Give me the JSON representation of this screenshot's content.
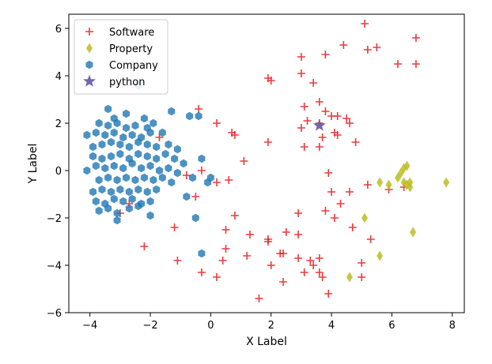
{
  "chart_data": {
    "type": "scatter",
    "xlabel": "X Label",
    "ylabel": "Y Label",
    "xlim": [
      -4.7,
      8.4
    ],
    "ylim": [
      -6.0,
      6.6
    ],
    "xticks": [
      -4,
      -2,
      0,
      2,
      4,
      6,
      8
    ],
    "yticks": [
      -6,
      -4,
      -2,
      0,
      2,
      4,
      6
    ],
    "grid": false,
    "legend_position": "top-left",
    "series": [
      {
        "name": "Software",
        "marker": "plus",
        "color": "#e41a1c",
        "points": [
          [
            5.1,
            6.2
          ],
          [
            6.8,
            5.6
          ],
          [
            5.2,
            5.1
          ],
          [
            5.5,
            5.2
          ],
          [
            4.4,
            5.3
          ],
          [
            3.0,
            4.8
          ],
          [
            3.8,
            4.9
          ],
          [
            6.2,
            4.5
          ],
          [
            6.8,
            4.5
          ],
          [
            1.9,
            3.9
          ],
          [
            2.0,
            3.8
          ],
          [
            3.0,
            4.1
          ],
          [
            3.4,
            3.7
          ],
          [
            -0.4,
            2.6
          ],
          [
            0.2,
            2.0
          ],
          [
            0.7,
            1.6
          ],
          [
            0.8,
            1.5
          ],
          [
            3.6,
            2.9
          ],
          [
            3.1,
            2.7
          ],
          [
            3.8,
            2.5
          ],
          [
            4.2,
            2.3
          ],
          [
            4.5,
            2.2
          ],
          [
            3.2,
            2.1
          ],
          [
            3.6,
            2.0
          ],
          [
            4.0,
            2.3
          ],
          [
            3.0,
            1.8
          ],
          [
            4.6,
            2.0
          ],
          [
            3.7,
            1.4
          ],
          [
            4.1,
            1.6
          ],
          [
            4.2,
            1.5
          ],
          [
            1.9,
            1.2
          ],
          [
            4.8,
            1.2
          ],
          [
            3.1,
            1.0
          ],
          [
            3.6,
            1.0
          ],
          [
            -1.7,
            1.4
          ],
          [
            1.1,
            0.4
          ],
          [
            -0.3,
            0.0
          ],
          [
            -0.8,
            -0.2
          ],
          [
            0.2,
            -0.5
          ],
          [
            0.6,
            -0.4
          ],
          [
            -0.5,
            -1.1
          ],
          [
            -2.7,
            -1.4
          ],
          [
            -3.0,
            -1.8
          ],
          [
            4.0,
            -0.9
          ],
          [
            4.3,
            -1.4
          ],
          [
            4.6,
            -0.9
          ],
          [
            5.2,
            -0.6
          ],
          [
            5.9,
            -0.8
          ],
          [
            6.4,
            -0.7
          ],
          [
            2.9,
            -1.8
          ],
          [
            3.8,
            -1.7
          ],
          [
            4.1,
            -2.0
          ],
          [
            0.8,
            -1.9
          ],
          [
            0.5,
            -2.5
          ],
          [
            -1.2,
            -2.4
          ],
          [
            4.7,
            -2.4
          ],
          [
            5.3,
            -2.9
          ],
          [
            2.5,
            -2.6
          ],
          [
            1.3,
            -2.7
          ],
          [
            1.9,
            -2.9
          ],
          [
            2.9,
            -2.7
          ],
          [
            -2.2,
            -3.2
          ],
          [
            1.9,
            -3.0
          ],
          [
            2.3,
            -3.5
          ],
          [
            2.4,
            -3.5
          ],
          [
            0.5,
            -3.3
          ],
          [
            -1.1,
            -3.8
          ],
          [
            0.4,
            -3.8
          ],
          [
            1.2,
            -3.6
          ],
          [
            2.0,
            -4.0
          ],
          [
            2.9,
            -3.7
          ],
          [
            3.3,
            -3.8
          ],
          [
            3.4,
            -4.0
          ],
          [
            3.6,
            -3.7
          ],
          [
            5.0,
            -3.9
          ],
          [
            -0.3,
            -4.3
          ],
          [
            0.2,
            -4.5
          ],
          [
            2.4,
            -4.7
          ],
          [
            3.1,
            -4.3
          ],
          [
            3.6,
            -4.3
          ],
          [
            3.7,
            -4.5
          ],
          [
            5.0,
            -4.5
          ],
          [
            3.9,
            -5.2
          ],
          [
            1.6,
            -5.4
          ],
          [
            3.9,
            -0.1
          ]
        ]
      },
      {
        "name": "Property",
        "marker": "diamond",
        "color": "#bcbd22",
        "points": [
          [
            5.6,
            -0.5
          ],
          [
            5.9,
            -0.6
          ],
          [
            6.2,
            -0.3
          ],
          [
            6.3,
            -0.1
          ],
          [
            6.4,
            0.1
          ],
          [
            6.5,
            0.2
          ],
          [
            6.5,
            -0.6
          ],
          [
            6.6,
            -0.5
          ],
          [
            6.6,
            -0.7
          ],
          [
            6.4,
            -0.5
          ],
          [
            7.8,
            -0.5
          ],
          [
            5.1,
            -2.0
          ],
          [
            6.7,
            -2.6
          ],
          [
            5.6,
            -3.6
          ],
          [
            4.6,
            -4.5
          ]
        ]
      },
      {
        "name": "Company",
        "marker": "hexagon",
        "color": "#1f77b4",
        "points": [
          [
            -2.4,
            3.6
          ],
          [
            -3.4,
            2.6
          ],
          [
            -2.8,
            2.4
          ],
          [
            -3.2,
            2.2
          ],
          [
            -2.2,
            2.2
          ],
          [
            -1.3,
            2.5
          ],
          [
            -0.7,
            2.3
          ],
          [
            -0.4,
            2.3
          ],
          [
            -3.7,
            2.0
          ],
          [
            -3.4,
            1.9
          ],
          [
            -3.1,
            2.0
          ],
          [
            -2.8,
            1.8
          ],
          [
            -2.5,
            1.9
          ],
          [
            -2.1,
            1.8
          ],
          [
            -1.9,
            2.0
          ],
          [
            -3.8,
            1.6
          ],
          [
            -3.5,
            1.5
          ],
          [
            -3.2,
            1.6
          ],
          [
            -2.9,
            1.4
          ],
          [
            -2.6,
            1.5
          ],
          [
            -2.3,
            1.4
          ],
          [
            -2.0,
            1.6
          ],
          [
            -1.6,
            1.6
          ],
          [
            -4.1,
            1.5
          ],
          [
            -3.9,
            1.0
          ],
          [
            -3.6,
            1.1
          ],
          [
            -3.3,
            1.2
          ],
          [
            -3.0,
            1.1
          ],
          [
            -2.7,
            1.0
          ],
          [
            -2.4,
            1.2
          ],
          [
            -2.1,
            1.1
          ],
          [
            -1.8,
            1.0
          ],
          [
            -1.4,
            1.1
          ],
          [
            -1.1,
            0.9
          ],
          [
            -3.9,
            0.6
          ],
          [
            -3.6,
            0.5
          ],
          [
            -3.3,
            0.6
          ],
          [
            -3.0,
            0.7
          ],
          [
            -2.7,
            0.5
          ],
          [
            -2.4,
            0.7
          ],
          [
            -2.1,
            0.6
          ],
          [
            -1.8,
            0.5
          ],
          [
            -1.5,
            0.7
          ],
          [
            -1.2,
            0.5
          ],
          [
            -0.9,
            0.3
          ],
          [
            -4.1,
            0.0
          ],
          [
            -3.8,
            0.2
          ],
          [
            -3.5,
            0.1
          ],
          [
            -3.2,
            0.2
          ],
          [
            -2.9,
            0.1
          ],
          [
            -2.6,
            0.3
          ],
          [
            -2.3,
            0.1
          ],
          [
            -2.0,
            0.2
          ],
          [
            -1.7,
            0.0
          ],
          [
            -1.4,
            0.1
          ],
          [
            -1.1,
            -0.1
          ],
          [
            -3.7,
            -0.4
          ],
          [
            -3.4,
            -0.3
          ],
          [
            -3.1,
            -0.4
          ],
          [
            -2.8,
            -0.3
          ],
          [
            -2.5,
            -0.4
          ],
          [
            -2.2,
            -0.3
          ],
          [
            -1.9,
            -0.4
          ],
          [
            -1.6,
            -0.3
          ],
          [
            -1.3,
            -0.5
          ],
          [
            -3.9,
            -0.9
          ],
          [
            -3.6,
            -0.8
          ],
          [
            -3.3,
            -0.9
          ],
          [
            -3.0,
            -0.8
          ],
          [
            -2.7,
            -0.9
          ],
          [
            -2.4,
            -0.8
          ],
          [
            -2.1,
            -0.9
          ],
          [
            -1.8,
            -0.8
          ],
          [
            -3.8,
            -1.3
          ],
          [
            -3.5,
            -1.4
          ],
          [
            -3.2,
            -1.2
          ],
          [
            -2.9,
            -1.3
          ],
          [
            -2.6,
            -1.2
          ],
          [
            -2.3,
            -1.4
          ],
          [
            -2.0,
            -1.3
          ],
          [
            -3.7,
            -1.7
          ],
          [
            -3.4,
            -1.6
          ],
          [
            -3.1,
            -1.8
          ],
          [
            -2.7,
            -1.6
          ],
          [
            -2.4,
            -1.5
          ],
          [
            -2.0,
            -1.9
          ],
          [
            -3.1,
            -2.1
          ],
          [
            -0.6,
            -0.3
          ],
          [
            0.0,
            -0.3
          ],
          [
            -0.3,
            0.5
          ],
          [
            -0.1,
            -0.5
          ],
          [
            -0.3,
            -3.5
          ],
          [
            -0.5,
            -2.0
          ],
          [
            -0.8,
            -1.1
          ]
        ]
      },
      {
        "name": "python",
        "marker": "star",
        "color": "#6a5fa6",
        "points": [
          [
            3.6,
            1.9
          ]
        ]
      }
    ]
  }
}
